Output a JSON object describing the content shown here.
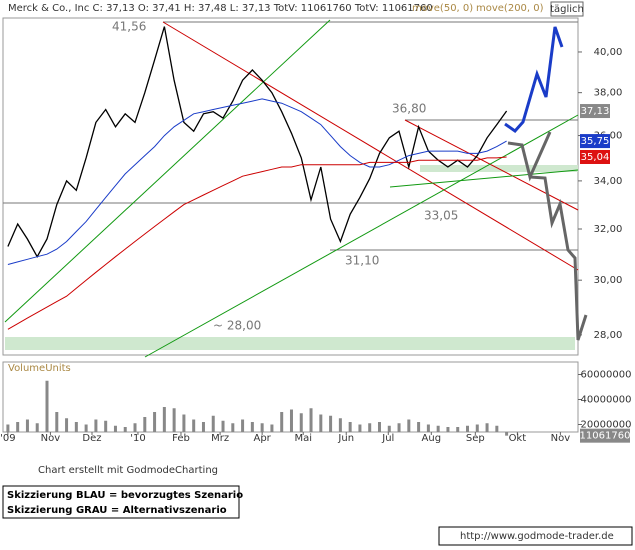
{
  "chart_data": [
    {
      "type": "line",
      "title": "Merck & Co., Inc C: 37,13 O: 37,41 H: 37,48 L: 37,13 TotV: 11061760 TotV: 11061760",
      "interval": "täglich",
      "log_scale": true,
      "x": [
        0,
        1,
        2,
        3,
        4,
        5,
        6,
        7,
        8,
        9,
        10,
        11,
        12,
        13,
        14,
        15,
        16,
        17,
        18,
        19,
        20,
        21,
        22,
        23,
        24,
        25,
        26,
        27,
        28,
        29,
        30,
        31,
        32,
        33,
        34,
        35,
        36,
        37,
        38,
        39,
        40,
        41,
        42,
        43,
        44,
        45,
        46,
        47,
        48,
        49,
        50,
        51
      ],
      "xlim": [
        -0.5,
        58.3
      ],
      "xticks": [
        {
          "value": 0,
          "label": "'09"
        },
        {
          "value": 4.35,
          "label": "Nov"
        },
        {
          "value": 8.6,
          "label": "Dez"
        },
        {
          "value": 13.3,
          "label": "'10"
        },
        {
          "value": 17.7,
          "label": "Feb"
        },
        {
          "value": 21.7,
          "label": "Mrz"
        },
        {
          "value": 26.0,
          "label": "Apr"
        },
        {
          "value": 30.2,
          "label": "Mai"
        },
        {
          "value": 34.6,
          "label": "Jun"
        },
        {
          "value": 38.9,
          "label": "Jul"
        },
        {
          "value": 43.3,
          "label": "Aug"
        },
        {
          "value": 47.8,
          "label": "Sep"
        },
        {
          "value": 52.1,
          "label": "Okt"
        },
        {
          "value": 56.5,
          "label": "Nov"
        }
      ],
      "ylim": [
        27.3,
        41.75
      ],
      "yticks": [
        {
          "value": 28,
          "label": "28,00"
        },
        {
          "value": 30,
          "label": "30,00"
        },
        {
          "value": 32,
          "label": "32,00"
        },
        {
          "value": 34,
          "label": "34,00"
        },
        {
          "value": 36,
          "label": "36,00"
        },
        {
          "value": 38,
          "label": "38,00"
        },
        {
          "value": 40,
          "label": "40,00"
        }
      ],
      "series": [
        {
          "color": "#000000",
          "last_label": "37,13",
          "label_color": "#888888",
          "values": [
            31.3,
            32.2,
            31.6,
            30.9,
            31.6,
            33.0,
            34.0,
            33.6,
            35.0,
            36.6,
            37.2,
            36.4,
            37.0,
            36.6,
            38.0,
            39.6,
            41.3,
            38.6,
            36.6,
            36.2,
            37.0,
            37.1,
            36.8,
            37.6,
            38.6,
            39.1,
            38.6,
            38.0,
            37.1,
            36.1,
            35.0,
            33.2,
            34.6,
            32.4,
            31.5,
            32.6,
            33.3,
            34.1,
            35.2,
            35.9,
            36.2,
            34.6,
            36.4,
            35.3,
            34.9,
            34.6,
            34.9,
            34.6,
            35.1,
            35.9,
            36.5,
            37.13
          ]
        },
        {
          "name": "move(50, 0)",
          "color": "#1a3cc8",
          "last_label": "35,75",
          "label_color": "#1a3cc8",
          "values": [
            30.6,
            30.7,
            30.8,
            30.9,
            31.0,
            31.2,
            31.5,
            31.9,
            32.3,
            32.8,
            33.3,
            33.8,
            34.3,
            34.7,
            35.1,
            35.5,
            36.0,
            36.4,
            36.7,
            37.0,
            37.1,
            37.2,
            37.3,
            37.4,
            37.5,
            37.6,
            37.7,
            37.6,
            37.5,
            37.3,
            37.1,
            36.8,
            36.5,
            36.0,
            35.5,
            35.1,
            34.8,
            34.6,
            34.6,
            34.7,
            34.9,
            35.1,
            35.2,
            35.3,
            35.3,
            35.3,
            35.3,
            35.2,
            35.2,
            35.3,
            35.5,
            35.75
          ]
        },
        {
          "name": "move(200, 0)",
          "color": "#cc0000",
          "last_label": "35,04",
          "label_color": "#dd1111",
          "values": [
            28.2,
            28.4,
            28.6,
            28.8,
            29.0,
            29.2,
            29.4,
            29.7,
            30.0,
            30.3,
            30.6,
            30.9,
            31.2,
            31.5,
            31.8,
            32.1,
            32.4,
            32.7,
            33.0,
            33.2,
            33.4,
            33.6,
            33.8,
            34.0,
            34.2,
            34.3,
            34.4,
            34.5,
            34.6,
            34.6,
            34.7,
            34.7,
            34.7,
            34.7,
            34.7,
            34.7,
            34.7,
            34.8,
            34.8,
            34.8,
            34.8,
            34.8,
            34.9,
            34.9,
            34.9,
            34.9,
            34.9,
            34.9,
            34.9,
            35.0,
            35.0,
            35.04
          ]
        }
      ],
      "annotations": [
        "41,56",
        "36,80",
        "33,05",
        "31,10",
        "~ 28,00"
      ],
      "credit": "Chart erstellt mit GodmodeCharting",
      "notes": [
        "Skizzierung BLAU = bevorzugtes Szenario",
        "Skizzierung GRAU = Alternativszenario"
      ],
      "url": "http://www.godmode-trader.de"
    },
    {
      "type": "bar",
      "title": "VolumeUnits",
      "color": "#888888",
      "last_label": "11061760",
      "ylim": [
        14000000,
        70000000
      ],
      "yticks": [
        20000000,
        40000000,
        60000000
      ],
      "values": [
        20000000,
        22000000,
        24000000,
        21000000,
        55000000,
        30000000,
        25000000,
        22000000,
        20000000,
        24000000,
        23000000,
        19000000,
        18000000,
        21000000,
        26000000,
        30000000,
        34000000,
        33000000,
        28000000,
        24000000,
        22000000,
        27000000,
        23000000,
        21000000,
        24000000,
        22000000,
        21000000,
        20000000,
        30000000,
        32000000,
        29000000,
        33000000,
        28000000,
        27000000,
        25000000,
        22000000,
        20000000,
        21000000,
        22000000,
        19000000,
        21000000,
        24000000,
        22000000,
        20000000,
        19000000,
        18000000,
        18000000,
        19000000,
        20000000,
        21000000,
        19000000,
        11061760
      ]
    }
  ]
}
